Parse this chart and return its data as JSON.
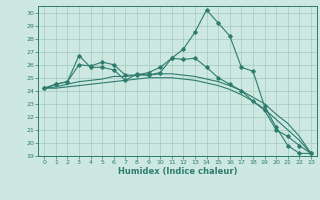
{
  "xlabel": "Humidex (Indice chaleur)",
  "background_color": "#cce8e0",
  "grid_color": "#aacec6",
  "line_color": "#2d7c6e",
  "xlim": [
    -0.5,
    23.5
  ],
  "ylim": [
    19,
    30.5
  ],
  "xticks": [
    0,
    1,
    2,
    3,
    4,
    5,
    6,
    7,
    8,
    9,
    10,
    11,
    12,
    13,
    14,
    15,
    16,
    17,
    18,
    19,
    20,
    21,
    22,
    23
  ],
  "yticks": [
    19,
    20,
    21,
    22,
    23,
    24,
    25,
    26,
    27,
    28,
    29,
    30
  ],
  "series_with_markers": [
    [
      24.2,
      24.5,
      24.7,
      26.7,
      25.8,
      25.8,
      25.6,
      24.8,
      25.3,
      25.2,
      25.4,
      26.5,
      27.2,
      28.5,
      30.2,
      29.2,
      28.2,
      25.8,
      25.5,
      22.8,
      21.2,
      19.8,
      19.2,
      19.2
    ],
    [
      24.2,
      24.5,
      24.7,
      26.0,
      25.9,
      26.2,
      26.0,
      25.2,
      25.2,
      25.4,
      25.8,
      26.5,
      26.4,
      26.5,
      25.8,
      25.0,
      24.5,
      24.0,
      23.2,
      22.5,
      21.0,
      20.5,
      19.8,
      19.2
    ]
  ],
  "series_lines_only": [
    [
      24.2,
      24.3,
      24.5,
      24.7,
      24.8,
      24.9,
      25.1,
      25.1,
      25.2,
      25.2,
      25.3,
      25.3,
      25.2,
      25.1,
      24.9,
      24.7,
      24.4,
      24.0,
      23.5,
      23.0,
      22.2,
      21.5,
      20.5,
      19.2
    ],
    [
      24.2,
      24.2,
      24.3,
      24.4,
      24.5,
      24.6,
      24.7,
      24.8,
      24.9,
      25.0,
      25.0,
      25.0,
      24.9,
      24.8,
      24.6,
      24.4,
      24.1,
      23.7,
      23.2,
      22.6,
      21.8,
      21.0,
      20.2,
      19.2
    ]
  ]
}
